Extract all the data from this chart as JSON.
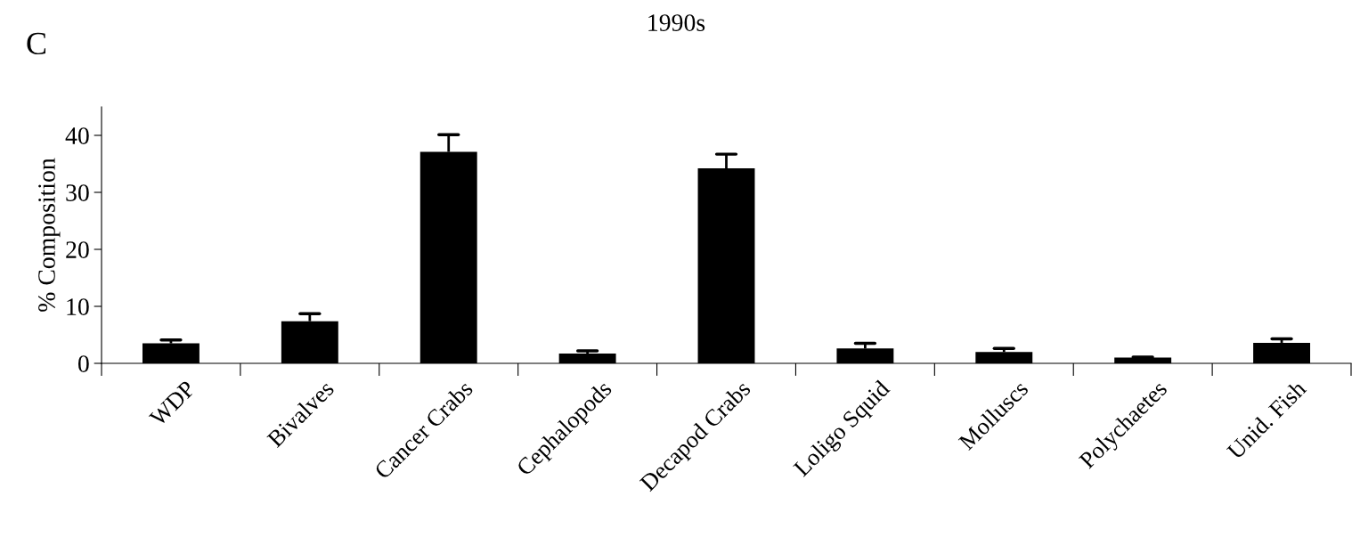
{
  "chart_data": {
    "type": "bar",
    "title": "1990s",
    "ylabel": "% Composition",
    "annotations": [
      "C"
    ],
    "categories": [
      "WDP",
      "Bivalves",
      "Cancer Crabs",
      "Cephalopods",
      "Decapod Crabs",
      "Loligo Squid",
      "Molluscs",
      "Polychaetes",
      "Unid. Fish"
    ],
    "values": [
      3.5,
      7.4,
      37.1,
      1.7,
      34.2,
      2.6,
      2.0,
      1.0,
      3.6
    ],
    "errors": [
      [
        3.5,
        4.1
      ],
      [
        7.4,
        8.7
      ],
      [
        37.1,
        40.1
      ],
      [
        1.7,
        2.2
      ],
      [
        34.2,
        36.7
      ],
      [
        2.6,
        3.5
      ],
      [
        2.0,
        2.6
      ],
      [
        1.0,
        1.1
      ],
      [
        3.6,
        4.3
      ]
    ],
    "color": "#000000",
    "ylim": [
      0,
      45
    ],
    "yticks": [
      0,
      10,
      20,
      30,
      40
    ],
    "grid": false,
    "legend": false
  }
}
